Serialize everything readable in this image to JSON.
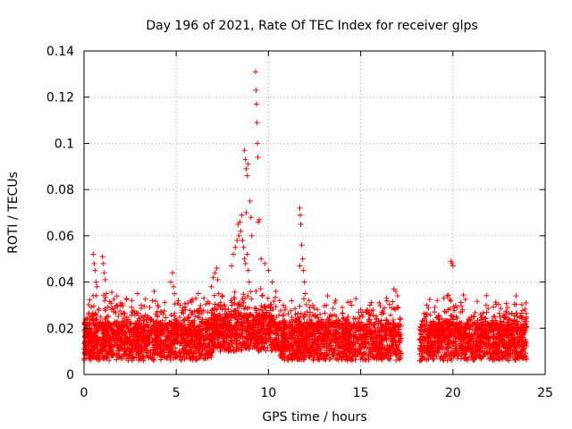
{
  "chart_data": {
    "type": "scatter",
    "title": "Day 196 of 2021, Rate Of TEC Index for receiver glps",
    "xlabel": "GPS time / hours",
    "ylabel": "ROTI / TECUs",
    "xlim": [
      0,
      25
    ],
    "ylim": [
      0,
      0.14
    ],
    "x_ticks": [
      0,
      5,
      10,
      15,
      20,
      25
    ],
    "x_tick_labels": [
      "0",
      "5",
      "10",
      "15",
      "20",
      "25"
    ],
    "y_ticks": [
      0,
      0.02,
      0.04,
      0.06,
      0.08,
      0.1,
      0.12,
      0.14
    ],
    "y_tick_labels": [
      "0",
      "0.02",
      "0.04",
      "0.06",
      "0.08",
      "0.1",
      "0.12",
      "0.14"
    ],
    "grid": true,
    "marker": "plus",
    "color": "#ff0000",
    "data_gap_hours": [
      17.2,
      18.2
    ],
    "points": [
      [
        0.5,
        0.052
      ],
      [
        0.55,
        0.048
      ],
      [
        0.6,
        0.045
      ],
      [
        0.65,
        0.04
      ],
      [
        0.7,
        0.038
      ],
      [
        1.0,
        0.051
      ],
      [
        1.05,
        0.048
      ],
      [
        1.1,
        0.044
      ],
      [
        1.15,
        0.041
      ],
      [
        1.2,
        0.035
      ],
      [
        1.5,
        0.028
      ],
      [
        2.0,
        0.03
      ],
      [
        2.6,
        0.032
      ],
      [
        2.9,
        0.035
      ],
      [
        3.1,
        0.03
      ],
      [
        3.8,
        0.036
      ],
      [
        4.0,
        0.03
      ],
      [
        4.2,
        0.027
      ],
      [
        4.3,
        0.026
      ],
      [
        4.7,
        0.04
      ],
      [
        4.8,
        0.044
      ],
      [
        4.85,
        0.038
      ],
      [
        4.9,
        0.035
      ],
      [
        5.2,
        0.03
      ],
      [
        5.5,
        0.028
      ],
      [
        5.8,
        0.032
      ],
      [
        6.2,
        0.035
      ],
      [
        6.5,
        0.033
      ],
      [
        6.9,
        0.038
      ],
      [
        7.0,
        0.042
      ],
      [
        7.1,
        0.044
      ],
      [
        7.2,
        0.046
      ],
      [
        7.25,
        0.041
      ],
      [
        7.3,
        0.035
      ],
      [
        7.4,
        0.03
      ],
      [
        8.0,
        0.047
      ],
      [
        8.1,
        0.052
      ],
      [
        8.2,
        0.055
      ],
      [
        8.3,
        0.058
      ],
      [
        8.35,
        0.065
      ],
      [
        8.4,
        0.06
      ],
      [
        8.45,
        0.066
      ],
      [
        8.5,
        0.062
      ],
      [
        8.55,
        0.069
      ],
      [
        8.6,
        0.058
      ],
      [
        8.65,
        0.055
      ],
      [
        8.7,
        0.05
      ],
      [
        8.75,
        0.048
      ],
      [
        8.8,
        0.07
      ],
      [
        8.85,
        0.052
      ],
      [
        8.9,
        0.045
      ],
      [
        8.95,
        0.04
      ],
      [
        8.7,
        0.097
      ],
      [
        8.75,
        0.093
      ],
      [
        8.8,
        0.089
      ],
      [
        8.85,
        0.086
      ],
      [
        8.9,
        0.091
      ],
      [
        9.0,
        0.075
      ],
      [
        9.05,
        0.068
      ],
      [
        9.1,
        0.06
      ],
      [
        9.3,
        0.131
      ],
      [
        9.32,
        0.123
      ],
      [
        9.35,
        0.117
      ],
      [
        9.38,
        0.109
      ],
      [
        9.4,
        0.1
      ],
      [
        9.42,
        0.094
      ],
      [
        9.45,
        0.066
      ],
      [
        9.5,
        0.067
      ],
      [
        9.6,
        0.05
      ],
      [
        9.8,
        0.048
      ],
      [
        10.0,
        0.045
      ],
      [
        10.2,
        0.04
      ],
      [
        10.4,
        0.036
      ],
      [
        10.6,
        0.032
      ],
      [
        10.8,
        0.03
      ],
      [
        11.7,
        0.072
      ],
      [
        11.72,
        0.069
      ],
      [
        11.75,
        0.065
      ],
      [
        11.8,
        0.056
      ],
      [
        11.85,
        0.05
      ],
      [
        11.7,
        0.047
      ],
      [
        11.9,
        0.045
      ],
      [
        11.95,
        0.04
      ],
      [
        12.0,
        0.035
      ],
      [
        12.2,
        0.032
      ],
      [
        12.4,
        0.03
      ],
      [
        13.2,
        0.034
      ],
      [
        13.6,
        0.031
      ],
      [
        14.0,
        0.029
      ],
      [
        14.5,
        0.03
      ],
      [
        15.0,
        0.028
      ],
      [
        15.5,
        0.03
      ],
      [
        16.0,
        0.031
      ],
      [
        16.4,
        0.033
      ],
      [
        16.8,
        0.037
      ],
      [
        16.9,
        0.036
      ],
      [
        17.0,
        0.034
      ],
      [
        18.6,
        0.026
      ],
      [
        19.0,
        0.027
      ],
      [
        19.5,
        0.033
      ],
      [
        19.7,
        0.034
      ],
      [
        19.9,
        0.049
      ],
      [
        19.95,
        0.048
      ],
      [
        20.0,
        0.047
      ],
      [
        20.4,
        0.027
      ],
      [
        21.0,
        0.025
      ],
      [
        21.5,
        0.026
      ],
      [
        21.8,
        0.03
      ],
      [
        22.2,
        0.025
      ],
      [
        22.6,
        0.023
      ],
      [
        23.0,
        0.024
      ],
      [
        23.5,
        0.023
      ]
    ]
  }
}
